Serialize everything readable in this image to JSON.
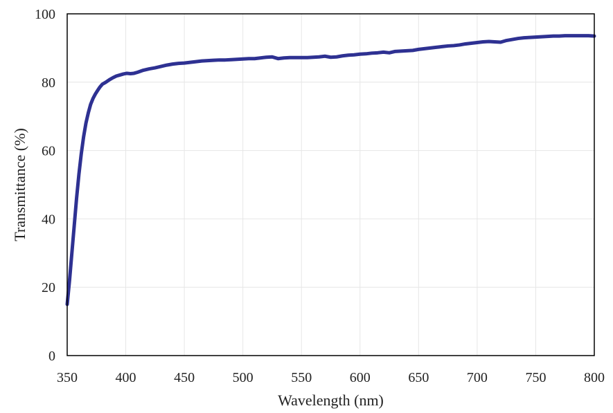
{
  "chart_data": {
    "type": "line",
    "xlabel": "Wavelength  (nm)",
    "ylabel": "Transmittance  (%)",
    "xlim": [
      350,
      800
    ],
    "ylim": [
      0,
      100
    ],
    "x_ticks": [
      350,
      400,
      450,
      500,
      550,
      600,
      650,
      700,
      750,
      800
    ],
    "y_ticks": [
      0,
      20,
      40,
      60,
      80,
      100
    ],
    "grid": "on",
    "legend": "none",
    "colors": {
      "line": "#2e3192",
      "grid": "#e6e6e6",
      "axis": "#000000"
    },
    "series": [
      {
        "x": [
          350,
          352,
          354,
          356,
          358,
          360,
          362,
          364,
          366,
          368,
          370,
          372,
          374,
          376,
          378,
          380,
          383,
          386,
          389,
          392,
          395,
          398,
          401,
          404,
          407,
          410,
          415,
          420,
          425,
          430,
          435,
          440,
          445,
          450,
          455,
          460,
          465,
          470,
          475,
          480,
          485,
          490,
          495,
          500,
          505,
          510,
          515,
          520,
          525,
          530,
          535,
          540,
          545,
          550,
          555,
          560,
          565,
          570,
          575,
          580,
          585,
          590,
          595,
          600,
          605,
          610,
          615,
          620,
          625,
          630,
          635,
          640,
          645,
          650,
          655,
          660,
          665,
          670,
          675,
          680,
          685,
          690,
          695,
          700,
          705,
          710,
          715,
          720,
          725,
          730,
          735,
          740,
          745,
          750,
          755,
          760,
          765,
          770,
          775,
          780,
          785,
          790,
          795,
          800
        ],
        "values": [
          15,
          22,
          30,
          38,
          46,
          53,
          59,
          64,
          68,
          71,
          73.5,
          75.2,
          76.5,
          77.6,
          78.6,
          79.4,
          80,
          80.7,
          81.3,
          81.8,
          82.1,
          82.4,
          82.6,
          82.5,
          82.6,
          82.9,
          83.5,
          83.9,
          84.2,
          84.6,
          85,
          85.3,
          85.5,
          85.6,
          85.8,
          86,
          86.2,
          86.3,
          86.4,
          86.5,
          86.5,
          86.6,
          86.7,
          86.8,
          86.9,
          86.9,
          87.1,
          87.3,
          87.4,
          86.9,
          87.1,
          87.2,
          87.2,
          87.2,
          87.2,
          87.3,
          87.4,
          87.6,
          87.3,
          87.4,
          87.7,
          87.9,
          88,
          88.2,
          88.3,
          88.5,
          88.6,
          88.8,
          88.6,
          89,
          89.1,
          89.2,
          89.3,
          89.6,
          89.8,
          90,
          90.2,
          90.4,
          90.6,
          90.7,
          90.9,
          91.2,
          91.4,
          91.6,
          91.8,
          91.9,
          91.8,
          91.7,
          92.2,
          92.5,
          92.8,
          93,
          93.1,
          93.2,
          93.3,
          93.4,
          93.5,
          93.5,
          93.6,
          93.6,
          93.6,
          93.6,
          93.6,
          93.5
        ]
      }
    ]
  }
}
